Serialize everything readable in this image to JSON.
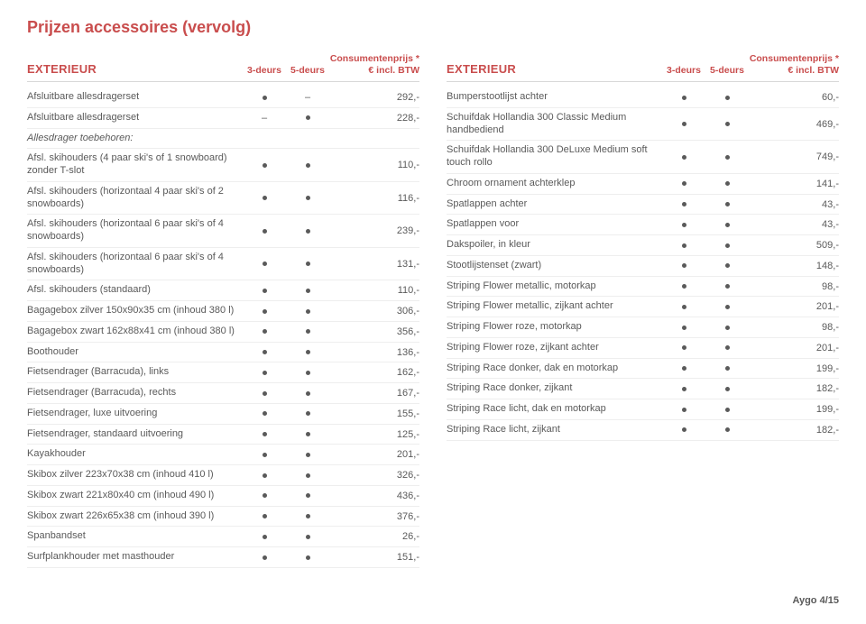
{
  "page_title": "Prijzen accessoires (vervolg)",
  "columns": {
    "col3": "3-deurs",
    "col5": "5-deurs",
    "price_l1": "Consumentenprijs *",
    "price_l2": "€ incl. BTW"
  },
  "section_left": "EXTERIEUR",
  "section_right": "EXTERIEUR",
  "left_subhead": "Allesdrager toebehoren:",
  "left": [
    {
      "name": "Afsluitbare allesdragerset",
      "d3": "dot",
      "d5": "dash",
      "price": "292,-"
    },
    {
      "name": "Afsluitbare allesdragerset",
      "d3": "dash",
      "d5": "dot",
      "price": "228,-"
    },
    {
      "subhead": true
    },
    {
      "name": "Afsl. skihouders (4 paar ski's of 1 snowboard) zonder T-slot",
      "d3": "dot",
      "d5": "dot",
      "price": "110,-"
    },
    {
      "name": "Afsl. skihouders (horizontaal 4 paar ski's of 2 snowboards)",
      "d3": "dot",
      "d5": "dot",
      "price": "116,-"
    },
    {
      "name": "Afsl. skihouders (horizontaal 6 paar ski's of 4 snowboards)",
      "d3": "dot",
      "d5": "dot",
      "price": "239,-"
    },
    {
      "name": "Afsl. skihouders (horizontaal 6 paar ski's of 4 snowboards)",
      "d3": "dot",
      "d5": "dot",
      "price": "131,-"
    },
    {
      "name": "Afsl. skihouders (standaard)",
      "d3": "dot",
      "d5": "dot",
      "price": "110,-"
    },
    {
      "name": "Bagagebox zilver 150x90x35 cm (inhoud 380 l)",
      "d3": "dot",
      "d5": "dot",
      "price": "306,-"
    },
    {
      "name": "Bagagebox zwart 162x88x41 cm (inhoud 380 l)",
      "d3": "dot",
      "d5": "dot",
      "price": "356,-"
    },
    {
      "name": "Boothouder",
      "d3": "dot",
      "d5": "dot",
      "price": "136,-"
    },
    {
      "name": "Fietsendrager (Barracuda), links",
      "d3": "dot",
      "d5": "dot",
      "price": "162,-"
    },
    {
      "name": "Fietsendrager (Barracuda), rechts",
      "d3": "dot",
      "d5": "dot",
      "price": "167,-"
    },
    {
      "name": "Fietsendrager, luxe uitvoering",
      "d3": "dot",
      "d5": "dot",
      "price": "155,-"
    },
    {
      "name": "Fietsendrager, standaard uitvoering",
      "d3": "dot",
      "d5": "dot",
      "price": "125,-"
    },
    {
      "name": "Kayakhouder",
      "d3": "dot",
      "d5": "dot",
      "price": "201,-"
    },
    {
      "name": "Skibox zilver 223x70x38 cm (inhoud 410 l)",
      "d3": "dot",
      "d5": "dot",
      "price": "326,-"
    },
    {
      "name": "Skibox zwart 221x80x40 cm (inhoud 490 l)",
      "d3": "dot",
      "d5": "dot",
      "price": "436,-"
    },
    {
      "name": "Skibox zwart 226x65x38 cm (inhoud 390 l)",
      "d3": "dot",
      "d5": "dot",
      "price": "376,-"
    },
    {
      "name": "Spanbandset",
      "d3": "dot",
      "d5": "dot",
      "price": "26,-"
    },
    {
      "name": "Surfplankhouder met masthouder",
      "d3": "dot",
      "d5": "dot",
      "price": "151,-"
    }
  ],
  "right": [
    {
      "name": "Bumperstootlijst achter",
      "d3": "dot",
      "d5": "dot",
      "price": "60,-"
    },
    {
      "name": "Schuifdak Hollandia 300 Classic Medium handbediend",
      "d3": "dot",
      "d5": "dot",
      "price": "469,-"
    },
    {
      "name": "Schuifdak Hollandia 300 DeLuxe Medium soft touch rollo",
      "d3": "dot",
      "d5": "dot",
      "price": "749,-"
    },
    {
      "name": "Chroom ornament achterklep",
      "d3": "dot",
      "d5": "dot",
      "price": "141,-"
    },
    {
      "name": "Spatlappen achter",
      "d3": "dot",
      "d5": "dot",
      "price": "43,-"
    },
    {
      "name": "Spatlappen voor",
      "d3": "dot",
      "d5": "dot",
      "price": "43,-"
    },
    {
      "name": "Dakspoiler, in kleur",
      "d3": "dot",
      "d5": "dot",
      "price": "509,-"
    },
    {
      "name": "Stootlijstenset (zwart)",
      "d3": "dot",
      "d5": "dot",
      "price": "148,-"
    },
    {
      "name": "Striping Flower metallic, motorkap",
      "d3": "dot",
      "d5": "dot",
      "price": "98,-"
    },
    {
      "name": "Striping Flower metallic, zijkant achter",
      "d3": "dot",
      "d5": "dot",
      "price": "201,-"
    },
    {
      "name": "Striping Flower roze, motorkap",
      "d3": "dot",
      "d5": "dot",
      "price": "98,-"
    },
    {
      "name": "Striping Flower roze, zijkant achter",
      "d3": "dot",
      "d5": "dot",
      "price": "201,-"
    },
    {
      "name": "Striping Race donker, dak en motorkap",
      "d3": "dot",
      "d5": "dot",
      "price": "199,-"
    },
    {
      "name": "Striping Race donker, zijkant",
      "d3": "dot",
      "d5": "dot",
      "price": "182,-"
    },
    {
      "name": "Striping Race licht, dak en motorkap",
      "d3": "dot",
      "d5": "dot",
      "price": "199,-"
    },
    {
      "name": "Striping Race licht, zijkant",
      "d3": "dot",
      "d5": "dot",
      "price": "182,-"
    }
  ],
  "footer": "Aygo  4/15"
}
